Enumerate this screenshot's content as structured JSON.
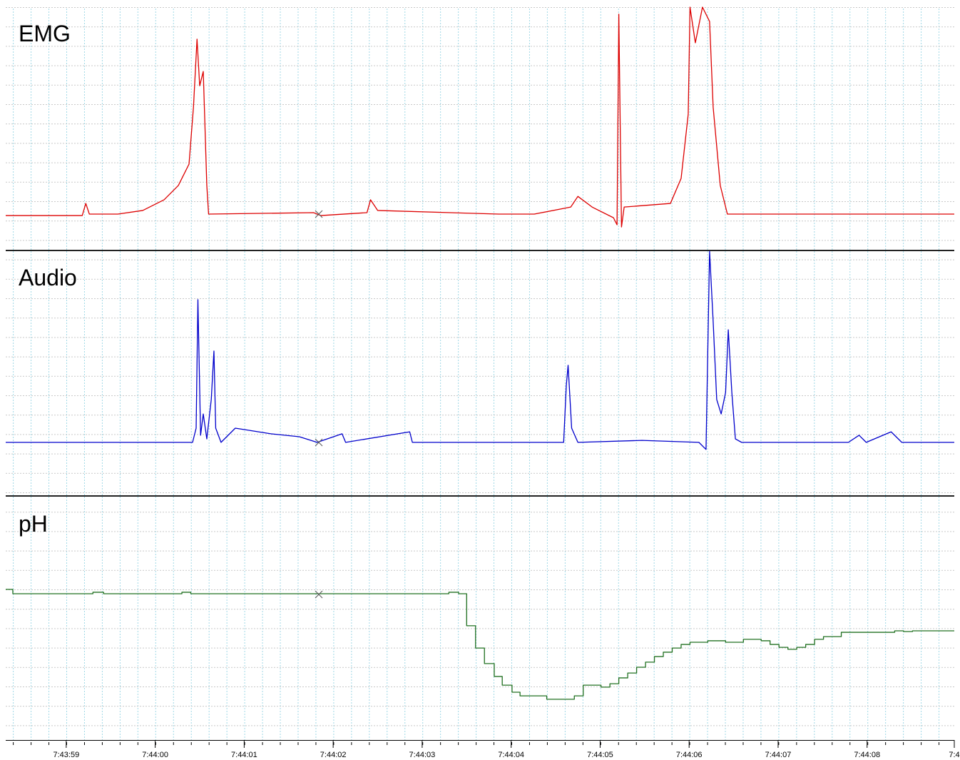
{
  "chart_data": [
    {
      "type": "line",
      "title": "EMG",
      "color": "#dd0000",
      "ylim": [
        0,
        100
      ],
      "xlim": [
        27838.32,
        27848.98
      ],
      "x": [
        27838.32,
        27839.18,
        27839.22,
        27839.26,
        27839.58,
        27839.86,
        27840.1,
        27840.26,
        27840.38,
        27840.43,
        27840.47,
        27840.5,
        27840.54,
        27840.58,
        27840.6,
        27841.78,
        27841.86,
        27842.38,
        27842.42,
        27842.5,
        27843.86,
        27844.26,
        27844.67,
        27844.75,
        27844.91,
        27845.15,
        27845.19,
        27845.21,
        27845.24,
        27845.27,
        27845.79,
        27845.91,
        27845.99,
        27846.01,
        27846.07,
        27846.15,
        27846.23,
        27846.27,
        27846.35,
        27846.43,
        27848.98
      ],
      "values": [
        14.1,
        14.1,
        19.1,
        14.7,
        14.7,
        16.2,
        20.6,
        26.5,
        35.3,
        58.8,
        86.8,
        67.6,
        73.5,
        26.5,
        14.7,
        15.3,
        14.1,
        15.3,
        20.6,
        16.2,
        14.7,
        14.7,
        17.6,
        22.0,
        17.6,
        13.2,
        10.3,
        97.1,
        9.4,
        17.6,
        19.1,
        29.4,
        55.9,
        100,
        85.3,
        100,
        94.1,
        58.8,
        26.5,
        14.7,
        14.7
      ]
    },
    {
      "type": "line",
      "title": "Audio",
      "color": "#0000cc",
      "ylim": [
        0,
        100
      ],
      "xlim": [
        27838.32,
        27848.98
      ],
      "x": [
        27838.32,
        27840.42,
        27840.46,
        27840.48,
        27840.51,
        27840.54,
        27840.58,
        27840.63,
        27840.66,
        27840.68,
        27840.74,
        27840.9,
        27841.06,
        27841.3,
        27841.62,
        27841.82,
        27842.1,
        27842.14,
        27842.86,
        27842.89,
        27844.59,
        27844.62,
        27844.64,
        27844.68,
        27844.75,
        27845.47,
        27846.11,
        27846.19,
        27846.23,
        27846.27,
        27846.31,
        27846.36,
        27846.41,
        27846.44,
        27846.48,
        27846.52,
        27846.59,
        27847.79,
        27847.91,
        27847.99,
        27848.27,
        27848.39,
        27848.98
      ],
      "values": [
        21.9,
        21.9,
        27.7,
        80.2,
        24.8,
        33.5,
        23.3,
        39.4,
        59.2,
        27.7,
        21.9,
        27.7,
        26.8,
        25.4,
        24.2,
        21.9,
        25.4,
        21.9,
        26.2,
        21.9,
        21.9,
        45.2,
        53.4,
        27.7,
        21.9,
        22.7,
        21.9,
        19.0,
        100,
        71.4,
        39.4,
        33.5,
        42.3,
        67.9,
        42.3,
        23.3,
        21.9,
        21.9,
        24.8,
        21.9,
        26.2,
        21.9,
        21.9
      ]
    },
    {
      "type": "step",
      "title": "pH",
      "color": "#207020",
      "ylim": [
        0,
        100
      ],
      "xlim": [
        27838.32,
        27848.98
      ],
      "x": [
        27838.32,
        27838.4,
        27839.3,
        27839.42,
        27840.3,
        27840.4,
        27843.3,
        27843.41,
        27843.5,
        27843.6,
        27843.7,
        27843.81,
        27843.9,
        27844.01,
        27844.1,
        27844.4,
        27844.71,
        27844.81,
        27845.01,
        27845.11,
        27845.21,
        27845.31,
        27845.41,
        27845.51,
        27845.61,
        27845.71,
        27845.81,
        27845.91,
        27846.01,
        27846.21,
        27846.41,
        27846.61,
        27846.81,
        27846.91,
        27847.01,
        27847.11,
        27847.21,
        27847.31,
        27847.41,
        27847.51,
        27847.71,
        27848.31,
        27848.41,
        27848.51,
        27848.98
      ],
      "values": [
        62.1,
        60.3,
        60.9,
        60.3,
        60.9,
        60.3,
        60.9,
        60.3,
        47.1,
        37.9,
        31.5,
        26.2,
        22.6,
        19.7,
        18.2,
        16.8,
        18.2,
        22.6,
        21.8,
        23.2,
        25.6,
        27.6,
        30.0,
        32.1,
        34.4,
        36.2,
        37.9,
        39.4,
        40.3,
        40.9,
        40.3,
        41.5,
        40.9,
        39.4,
        38.2,
        37.4,
        38.2,
        39.4,
        41.5,
        42.6,
        44.4,
        45.0,
        44.7,
        45.0,
        45.0
      ],
      "xticks": [
        {
          "value": 27839,
          "label": "7:43:59"
        },
        {
          "value": 27840,
          "label": "7:44:00"
        },
        {
          "value": 27841,
          "label": "7:44:01"
        },
        {
          "value": 27842,
          "label": "7:44:02"
        },
        {
          "value": 27843,
          "label": "7:44:03"
        },
        {
          "value": 27844,
          "label": "7:44:04"
        },
        {
          "value": 27845,
          "label": "7:44:05"
        },
        {
          "value": 27846,
          "label": "7:44:06"
        },
        {
          "value": 27847,
          "label": "7:44:07"
        },
        {
          "value": 27848,
          "label": "7:44:08"
        },
        {
          "value": 27848.98,
          "label": "7:4"
        }
      ]
    }
  ]
}
